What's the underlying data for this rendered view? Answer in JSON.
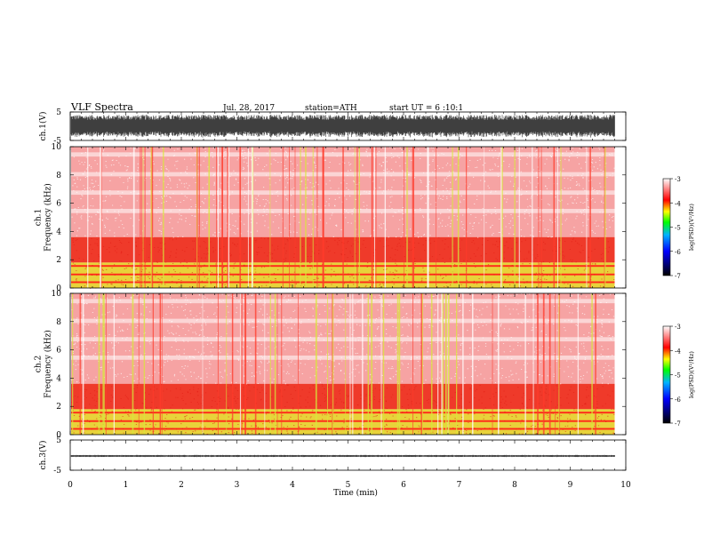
{
  "header": {
    "title": "VLF Spectra",
    "date": "Jul. 28, 2017",
    "station": "station=ATH",
    "start_ut": "start UT = 6 :10:1"
  },
  "colors": {
    "frame": "#000000",
    "colorbar_stops": [
      "#000000",
      "#0000ff",
      "#00b4ff",
      "#00ff00",
      "#ffff00",
      "#ff0000",
      "#ffffff"
    ]
  },
  "chart_data": [
    {
      "type": "line",
      "name": "ch1-waveform",
      "ylabel": "ch.1(V)",
      "ylim": [
        -5,
        5
      ],
      "yticks": [
        "5",
        "-5"
      ],
      "xlim": [
        0,
        10
      ],
      "duration_min": 9.8,
      "description": "dense oscillating waveform filling roughly -4 to 4 V"
    },
    {
      "type": "heatmap",
      "name": "ch1-spectrogram",
      "ylabel": "ch.1\nFrequency (kHz)",
      "ylim": [
        0,
        10
      ],
      "yticks": [
        "0",
        "2",
        "4",
        "6",
        "8",
        "10"
      ],
      "xlim": [
        0,
        10
      ],
      "duration_min": 9.8,
      "colorbar": {
        "label": "log(PSD)(V²/Hz)",
        "range": [
          -7,
          -3
        ],
        "ticks": [
          "-3",
          "-4",
          "-5",
          "-6",
          "-7"
        ]
      }
    },
    {
      "type": "heatmap",
      "name": "ch2-spectrogram",
      "ylabel": "ch.2\nFrequency (kHz)",
      "ylim": [
        0,
        10
      ],
      "yticks": [
        "0",
        "2",
        "4",
        "6",
        "8",
        "10"
      ],
      "xlim": [
        0,
        10
      ],
      "duration_min": 9.8,
      "colorbar": {
        "label": "log(PSD)(V²/Hz)",
        "range": [
          -7,
          -3
        ],
        "ticks": [
          "-3",
          "-4",
          "-5",
          "-6",
          "-7"
        ]
      }
    },
    {
      "type": "line",
      "name": "ch3-waveform",
      "ylabel": "ch.3(V)",
      "ylim": [
        -5,
        5
      ],
      "yticks": [
        "5",
        "-5"
      ],
      "xlim": [
        0,
        10
      ],
      "duration_min": 9.8,
      "description": "narrow flat waveform near -0.3 V"
    }
  ],
  "x_axis": {
    "label": "Time (min)",
    "ticks": [
      "0",
      "1",
      "2",
      "3",
      "4",
      "5",
      "6",
      "7",
      "8",
      "9",
      "10"
    ]
  }
}
